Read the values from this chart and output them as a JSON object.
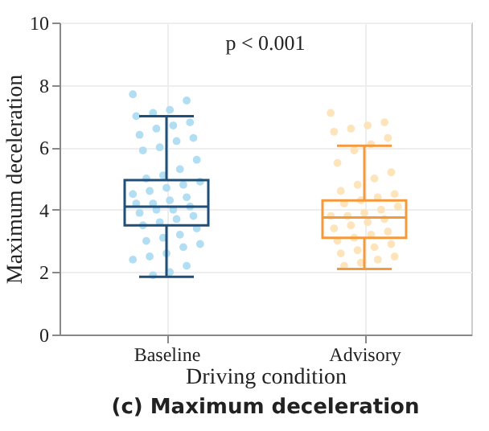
{
  "chart_data": {
    "type": "box",
    "title": "(c) Maximum deceleration",
    "xlabel": "Driving condition",
    "ylabel": "Maximum deceleration",
    "categories": [
      "Baseline",
      "Advisory"
    ],
    "ylim": [
      0,
      10
    ],
    "yticks": [
      0,
      2,
      4,
      6,
      8,
      10
    ],
    "grid": true,
    "annotations": [
      "p < 0.001"
    ],
    "series": [
      {
        "type": "box",
        "colors": [
          "#1f4e79",
          "#f59a3c"
        ],
        "boxes": [
          {
            "low": 1.85,
            "q1": 3.5,
            "median": 4.1,
            "q3": 4.95,
            "high": 7.0
          },
          {
            "low": 2.1,
            "q1": 3.1,
            "median": 3.75,
            "q3": 4.3,
            "high": 6.05
          }
        ]
      },
      {
        "type": "scatter",
        "color": "#a9daf2",
        "x": [
          "Baseline",
          "Baseline",
          "Baseline",
          "Baseline",
          "Baseline",
          "Baseline",
          "Baseline",
          "Baseline",
          "Baseline",
          "Baseline",
          "Baseline",
          "Baseline",
          "Baseline",
          "Baseline",
          "Baseline",
          "Baseline",
          "Baseline",
          "Baseline",
          "Baseline",
          "Baseline",
          "Baseline",
          "Baseline",
          "Baseline",
          "Baseline",
          "Baseline",
          "Baseline",
          "Baseline",
          "Baseline",
          "Baseline",
          "Baseline",
          "Baseline",
          "Baseline",
          "Baseline",
          "Baseline",
          "Baseline",
          "Baseline",
          "Baseline",
          "Baseline",
          "Baseline",
          "Baseline",
          "Baseline",
          "Baseline",
          "Baseline",
          "Baseline",
          "Baseline",
          "Baseline"
        ],
        "values": [
          7.7,
          7.5,
          7.2,
          7.1,
          7.0,
          6.8,
          6.7,
          6.6,
          6.4,
          6.3,
          6.2,
          6.0,
          5.9,
          5.6,
          5.3,
          5.1,
          5.0,
          4.9,
          4.8,
          4.7,
          4.6,
          4.5,
          4.4,
          4.3,
          4.2,
          4.2,
          4.1,
          4.0,
          4.0,
          3.9,
          3.8,
          3.7,
          3.6,
          3.5,
          3.4,
          3.2,
          3.1,
          3.0,
          2.9,
          2.8,
          2.6,
          2.5,
          2.4,
          2.2,
          2.0,
          1.9
        ]
      },
      {
        "type": "scatter",
        "color": "#fde1b3",
        "x": [
          "Advisory",
          "Advisory",
          "Advisory",
          "Advisory",
          "Advisory",
          "Advisory",
          "Advisory",
          "Advisory",
          "Advisory",
          "Advisory",
          "Advisory",
          "Advisory",
          "Advisory",
          "Advisory",
          "Advisory",
          "Advisory",
          "Advisory",
          "Advisory",
          "Advisory",
          "Advisory",
          "Advisory",
          "Advisory",
          "Advisory",
          "Advisory",
          "Advisory",
          "Advisory",
          "Advisory",
          "Advisory",
          "Advisory",
          "Advisory",
          "Advisory",
          "Advisory",
          "Advisory",
          "Advisory",
          "Advisory",
          "Advisory",
          "Advisory",
          "Advisory"
        ],
        "values": [
          7.1,
          6.8,
          6.7,
          6.6,
          6.5,
          6.3,
          6.1,
          5.9,
          5.5,
          5.2,
          5.0,
          4.8,
          4.6,
          4.5,
          4.4,
          4.3,
          4.2,
          4.1,
          4.0,
          3.9,
          3.8,
          3.8,
          3.7,
          3.6,
          3.5,
          3.4,
          3.3,
          3.2,
          3.1,
          3.0,
          2.9,
          2.8,
          2.7,
          2.6,
          2.5,
          2.4,
          2.3,
          2.2
        ]
      }
    ]
  }
}
